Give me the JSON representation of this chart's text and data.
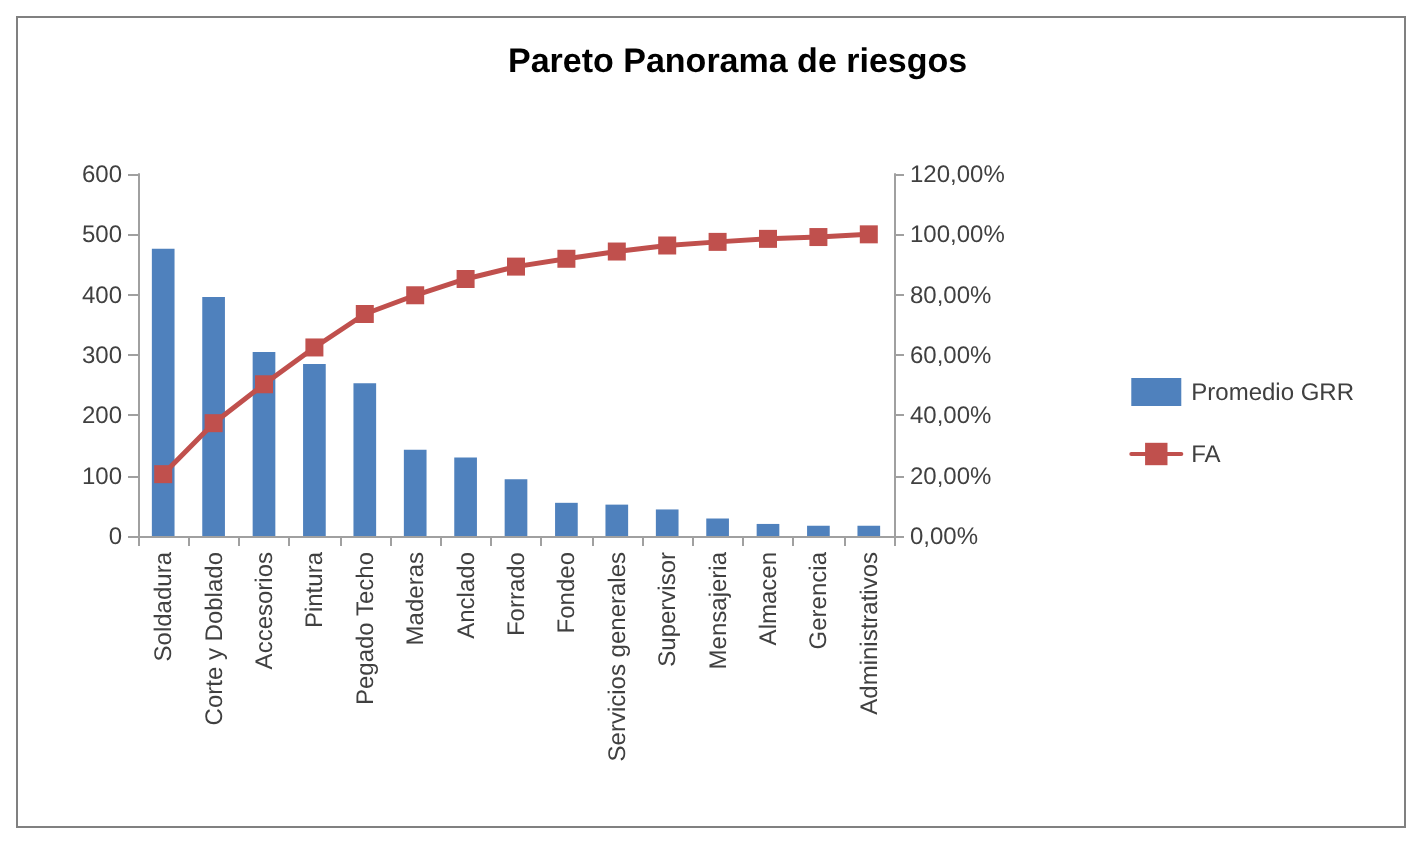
{
  "chart_data": {
    "type": "bar",
    "title": "Pareto Panorama de riesgos",
    "categories": [
      "Soldadura",
      "Corte y Doblado",
      "Accesorios",
      "Pintura",
      "Pegado Techo",
      "Maderas",
      "Anclado",
      "Forrado",
      "Fondeo",
      "Servicios generales",
      "Supervisor",
      "Mensajeria",
      "Almacen",
      "Gerencia",
      "Administrativos"
    ],
    "series": [
      {
        "name": "Promedio GRR",
        "color": "#4f81bd",
        "values": [
          476,
          396,
          305,
          285,
          253,
          143,
          130,
          94,
          55,
          52,
          44,
          29,
          20,
          17,
          17
        ]
      },
      {
        "name": "FA",
        "type": "line",
        "axis": "y2",
        "color": "#c0504d",
        "marker": "square",
        "values": [
          20.5,
          37.4,
          50.3,
          62.5,
          73.6,
          79.8,
          85.2,
          89.3,
          91.9,
          94.3,
          96.3,
          97.5,
          98.5,
          99.1,
          100
        ]
      }
    ],
    "ylim": [
      0,
      600
    ],
    "yticks": [
      0,
      100,
      200,
      300,
      400,
      500,
      600
    ],
    "y2lim": [
      0,
      120
    ],
    "y2ticks": [
      {
        "value": 0,
        "label": "0,00%"
      },
      {
        "value": 20,
        "label": "20,00%"
      },
      {
        "value": 40,
        "label": "40,00%"
      },
      {
        "value": 60,
        "label": "60,00%"
      },
      {
        "value": 80,
        "label": "80,00%"
      },
      {
        "value": 100,
        "label": "100,00%"
      },
      {
        "value": 120,
        "label": "120,00%"
      }
    ],
    "grid": false,
    "legend": "right"
  }
}
